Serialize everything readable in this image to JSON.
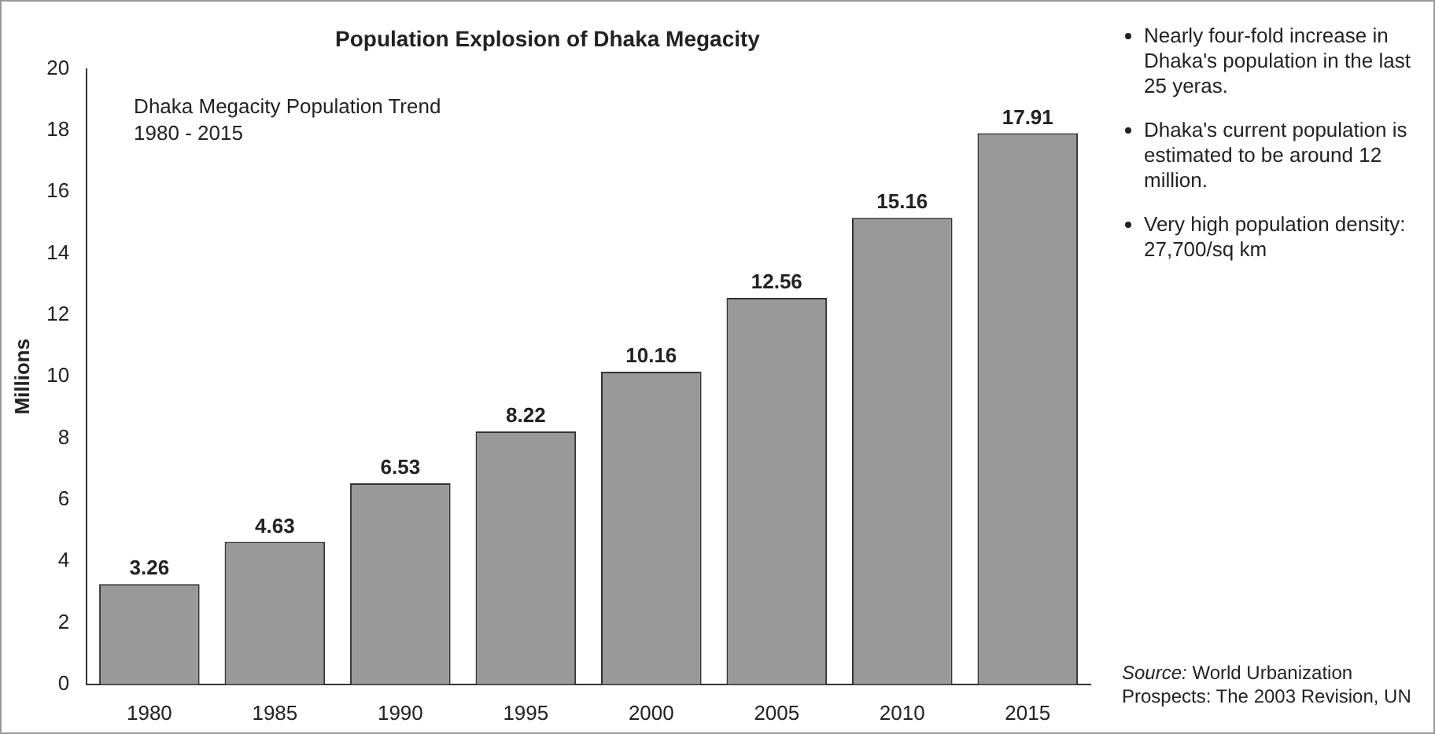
{
  "chart_data": {
    "type": "bar",
    "title": "Population Explosion of Dhaka Megacity",
    "subtitle": "Dhaka Megacity Population Trend\n1980 - 2015",
    "ylabel": "Millions",
    "categories": [
      "1980",
      "1985",
      "1990",
      "1995",
      "2000",
      "2005",
      "2010",
      "2015"
    ],
    "values": [
      3.26,
      4.63,
      6.53,
      8.22,
      10.16,
      12.56,
      15.16,
      17.91
    ],
    "color": "#999999",
    "ylim": [
      0,
      20
    ],
    "yticks": [
      0,
      2,
      4,
      6,
      8,
      10,
      12,
      14,
      16,
      18,
      20
    ],
    "grid": false,
    "legend": false,
    "data_labels": true,
    "annotations": [
      "Nearly four-fold increase in Dhaka's population in the last 25 yeras.",
      "Dhaka's current population is estimated to be around 12 million.",
      "Very high population density: 27,700/sq km",
      "Source:  World Urbanization Prospects: The 2003 Revision, UN"
    ]
  }
}
